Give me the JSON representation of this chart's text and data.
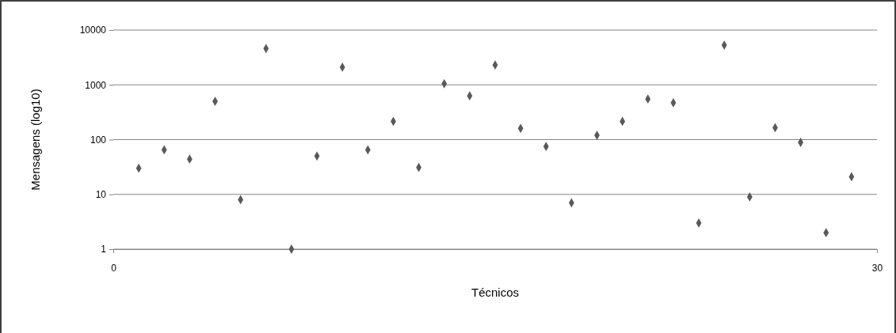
{
  "chart_data": {
    "type": "scatter",
    "xlabel": "Técnicos",
    "ylabel": "Mensagens  (log10)",
    "x": [
      1,
      2,
      3,
      4,
      5,
      6,
      7,
      8,
      9,
      10,
      11,
      12,
      13,
      14,
      15,
      16,
      17,
      18,
      19,
      20,
      21,
      22,
      23,
      24,
      25,
      26,
      27,
      28,
      29
    ],
    "series": [
      {
        "color": "#595959",
        "values": [
          30,
          65,
          44,
          500,
          8,
          4600,
          1,
          50,
          2100,
          65,
          215,
          31,
          1050,
          630,
          2300,
          160,
          75,
          7,
          120,
          215,
          550,
          470,
          3,
          5300,
          9,
          165,
          89,
          2,
          21
        ]
      }
    ],
    "xlim": [
      0,
      30
    ],
    "xticks": [
      0,
      30
    ],
    "ylim": [
      1,
      10000
    ],
    "yticks": [
      1,
      10,
      100,
      1000,
      10000
    ],
    "log": "y",
    "grid": "y",
    "marker": "diamond"
  }
}
